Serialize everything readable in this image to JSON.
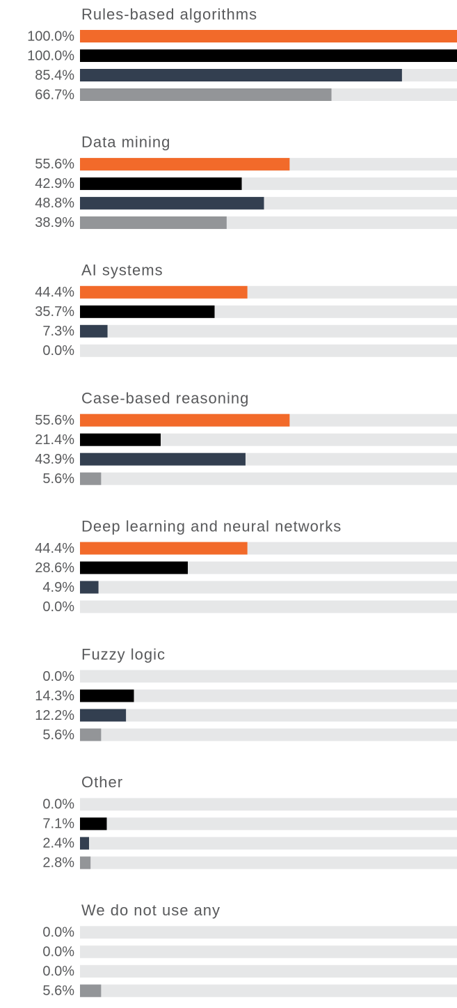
{
  "chart_data": {
    "type": "bar",
    "categories": [
      "Rules-based algorithms",
      "Data mining",
      "AI systems",
      "Case-based reasoning",
      "Deep learning and neural networks",
      "Fuzzy logic",
      "Other",
      "We do not use any"
    ],
    "series": [
      {
        "color": "#f26a2a",
        "values": [
          100,
          55.6,
          44.4,
          55.6,
          44.4,
          0,
          0,
          0
        ],
        "value_labels": [
          "100.0%",
          "55.6%",
          "44.4%",
          "55.6%",
          "44.4%",
          "0.0%",
          "0.0%",
          "0.0%"
        ]
      },
      {
        "color": "#000000",
        "values": [
          100,
          42.9,
          35.7,
          21.4,
          28.6,
          14.3,
          7.1,
          0
        ],
        "value_labels": [
          "100.0%",
          "42.9%",
          "35.7%",
          "21.4%",
          "28.6%",
          "14.3%",
          "7.1%",
          "0.0%"
        ]
      },
      {
        "color": "#333f50",
        "values": [
          85.4,
          48.8,
          7.3,
          43.9,
          4.9,
          12.2,
          2.4,
          0
        ],
        "value_labels": [
          "85.4%",
          "48.8%",
          "7.3%",
          "43.9%",
          "4.9%",
          "12.2%",
          "2.4%",
          "0.0%"
        ]
      },
      {
        "color": "#939598",
        "values": [
          66.7,
          38.9,
          0,
          5.6,
          0,
          5.6,
          2.8,
          5.6
        ],
        "value_labels": [
          "66.7%",
          "38.9%",
          "0.0%",
          "5.6%",
          "0.0%",
          "5.6%",
          "2.8%",
          "5.6%"
        ]
      }
    ],
    "xlim": [
      0,
      100
    ]
  }
}
